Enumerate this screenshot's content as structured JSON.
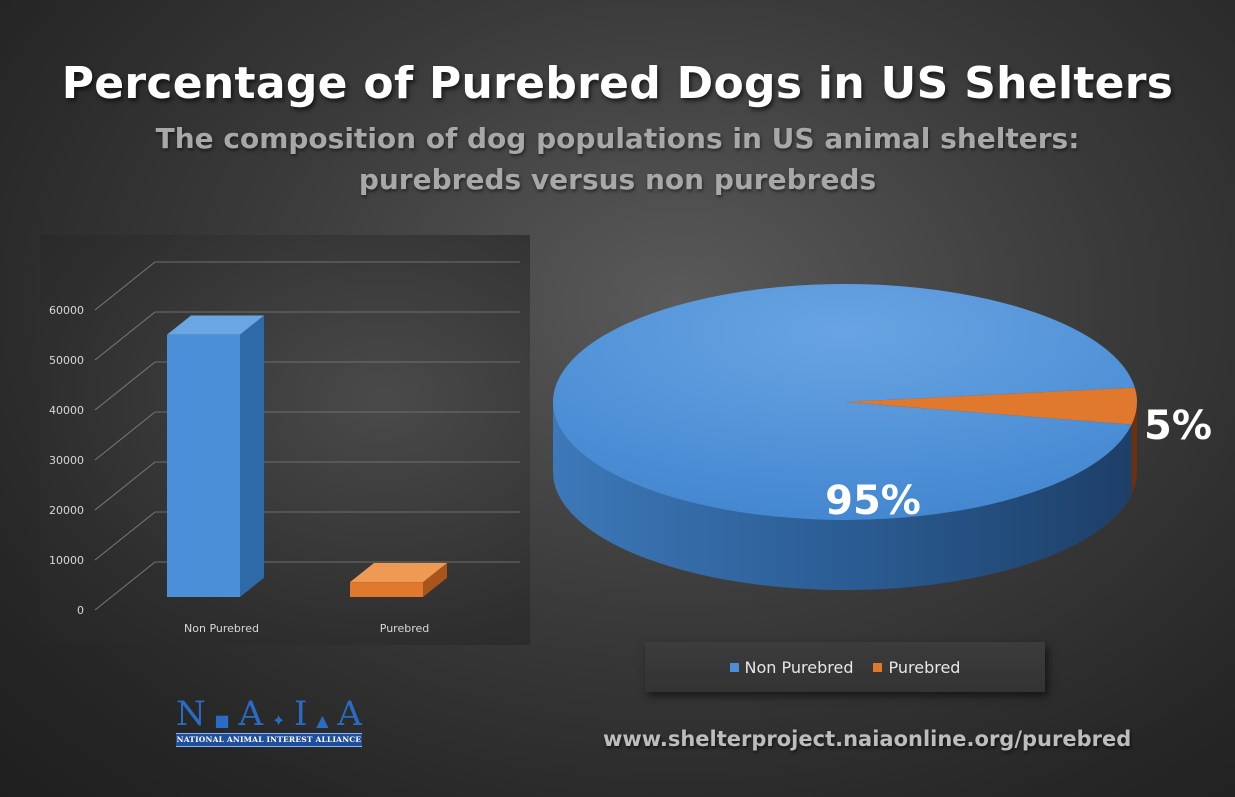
{
  "header": {
    "title": "Percentage of Purebred Dogs in US Shelters",
    "subtitle_line1": "The composition of dog populations in US animal shelters:",
    "subtitle_line2": "purebreds versus non purebreds"
  },
  "colors": {
    "non_purebred": "#4a8fd8",
    "purebred": "#e0782e"
  },
  "chart_data": [
    {
      "type": "bar",
      "categories": [
        "Non Purebred",
        "Purebred"
      ],
      "values": [
        53000,
        3000
      ],
      "ylim": [
        0,
        60000
      ],
      "yticks": [
        0,
        10000,
        20000,
        30000,
        40000,
        50000,
        60000
      ],
      "grid": true
    },
    {
      "type": "pie",
      "labels": [
        "Non Purebred",
        "Purebred"
      ],
      "values": [
        95,
        5
      ],
      "data_labels": [
        "95%",
        "5%"
      ],
      "legend": [
        "Non Purebred",
        "Purebred"
      ],
      "legend_position": "bottom"
    }
  ],
  "logo": {
    "letters": [
      "N",
      "A",
      "I",
      "A"
    ],
    "tagline": "NATIONAL ANIMAL INTEREST ALLIANCE"
  },
  "footer": {
    "url": "www.shelterproject.naiaonline.org/purebred"
  }
}
